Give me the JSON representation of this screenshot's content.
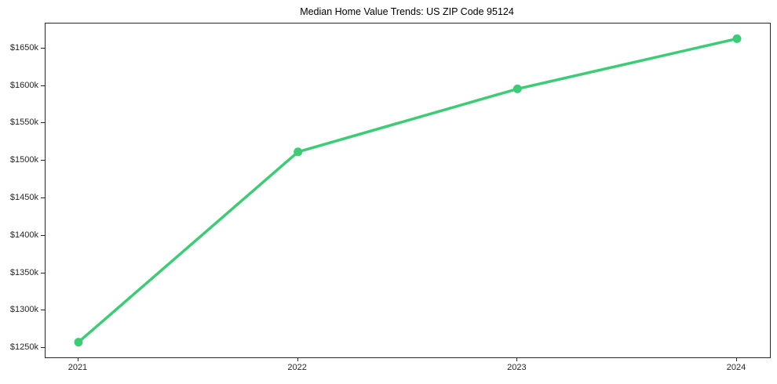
{
  "title": "Median Home Value Trends: US ZIP Code 95124",
  "chart_data": {
    "type": "line",
    "title": "Median Home Value Trends: US ZIP Code 95124",
    "x": [
      2021,
      2022,
      2023,
      2024
    ],
    "x_tick_labels": [
      "2021",
      "2022",
      "2023",
      "2024"
    ],
    "values": [
      1258,
      1512,
      1596,
      1663
    ],
    "y_ticks": [
      1250,
      1300,
      1350,
      1400,
      1450,
      1500,
      1550,
      1600,
      1650
    ],
    "y_tick_labels": [
      "$1250k",
      "$1300k",
      "$1350k",
      "$1400k",
      "$1450k",
      "$1500k",
      "$1550k",
      "$1600k",
      "$1650k"
    ],
    "xlabel": "",
    "ylabel": "",
    "xlim": [
      2020.85,
      2024.15
    ],
    "ylim": [
      1237.75,
      1683.25
    ],
    "grid": false,
    "legend": false,
    "line_color": "#3dcc76",
    "marker": "circle",
    "marker_radius": 5.5,
    "line_width": 3.5,
    "spine_color": "#262626",
    "background": "#ffffff"
  }
}
